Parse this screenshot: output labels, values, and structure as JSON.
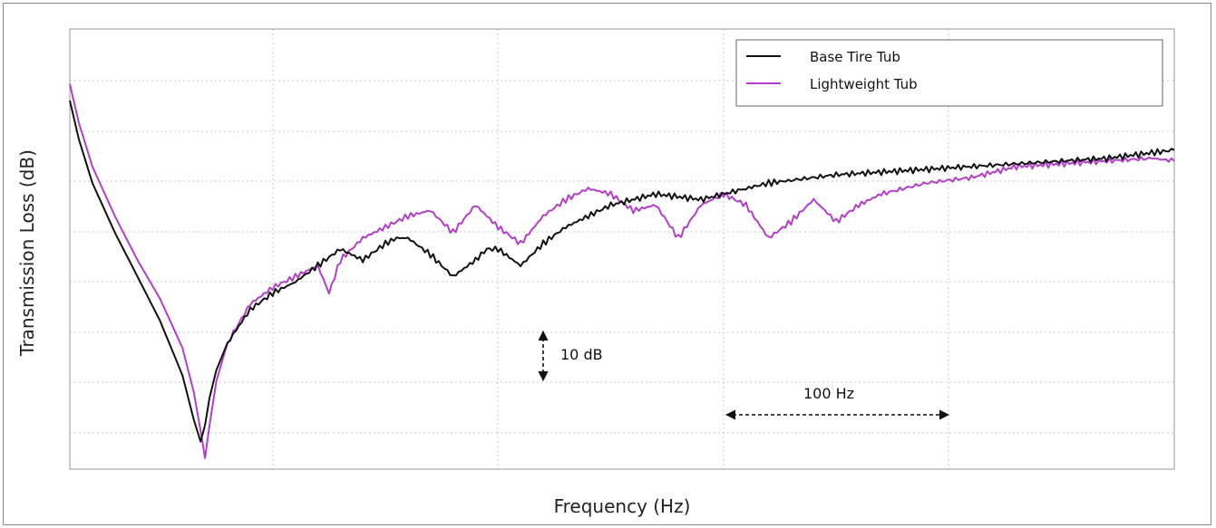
{
  "chart_data": {
    "type": "line",
    "title": "",
    "xlabel": "Frequency (Hz)",
    "ylabel": "Transmission Loss (dB)",
    "x_tick_labels": [],
    "y_tick_labels": [],
    "grid": true,
    "legend_position": "top-right",
    "xlim": [
      0,
      490
    ],
    "ylim": [
      0,
      80
    ],
    "series": [
      {
        "name": "Base Tire Tub",
        "color": "#111111",
        "x": [
          0,
          4,
          10,
          20,
          30,
          40,
          50,
          55,
          58,
          60,
          62,
          65,
          70,
          80,
          90,
          100,
          110,
          120,
          130,
          140,
          145,
          150,
          160,
          170,
          180,
          185,
          190,
          200,
          210,
          220,
          225,
          230,
          240,
          260,
          280,
          300,
          310,
          320,
          340,
          360,
          380,
          400,
          420,
          440,
          460,
          480,
          490
        ],
        "y": [
          67,
          60,
          52,
          43,
          35,
          27,
          17,
          9,
          5,
          8,
          13,
          18,
          23,
          29,
          32,
          34,
          37,
          40,
          38,
          41,
          42,
          42,
          39,
          35,
          38,
          40,
          40,
          37,
          41,
          44,
          45,
          46,
          48,
          50,
          49,
          51,
          52,
          52.5,
          53.5,
          54,
          54.5,
          55,
          55.5,
          56,
          56.5,
          57.5,
          58
        ]
      },
      {
        "name": "Lightweight Tub",
        "color": "#b23ec9",
        "x": [
          0,
          4,
          10,
          20,
          30,
          40,
          50,
          55,
          58,
          60,
          62,
          65,
          70,
          80,
          90,
          100,
          110,
          115,
          120,
          130,
          140,
          150,
          160,
          170,
          180,
          190,
          200,
          210,
          220,
          230,
          240,
          250,
          260,
          270,
          280,
          290,
          300,
          310,
          320,
          330,
          340,
          350,
          360,
          380,
          400,
          420,
          440,
          460,
          480,
          490
        ],
        "y": [
          70,
          63,
          55,
          46,
          38,
          31,
          22,
          14,
          7,
          2,
          8,
          16,
          23,
          30,
          33,
          35,
          37,
          32,
          38,
          42,
          44,
          46,
          47,
          43,
          48,
          44,
          41,
          46,
          49,
          51,
          50,
          47,
          48,
          42,
          48,
          50,
          48,
          42,
          45,
          49,
          45,
          48,
          50,
          52,
          53,
          55,
          55.5,
          56,
          56.5,
          56
        ]
      }
    ],
    "annotations": [
      {
        "label": "10 dB",
        "type": "vertical-scale-bar",
        "value": 10
      },
      {
        "label": "100 Hz",
        "type": "horizontal-scale-bar",
        "value": 100
      }
    ]
  }
}
